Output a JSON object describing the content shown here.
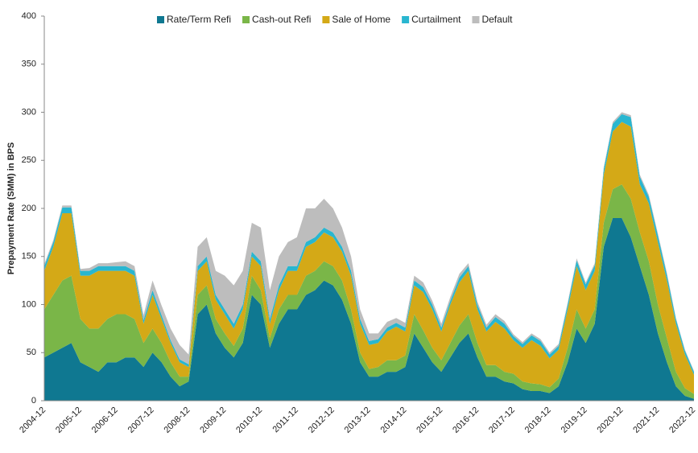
{
  "chart_data": {
    "type": "stacked_area",
    "ylabel": "Prepayment Rate (SMM) in BPS",
    "x": [
      "2004-12",
      "2005-03",
      "2005-06",
      "2005-09",
      "2005-12",
      "2006-03",
      "2006-06",
      "2006-09",
      "2006-12",
      "2007-03",
      "2007-06",
      "2007-09",
      "2007-12",
      "2008-03",
      "2008-06",
      "2008-09",
      "2008-12",
      "2009-03",
      "2009-06",
      "2009-09",
      "2009-12",
      "2010-03",
      "2010-06",
      "2010-09",
      "2010-12",
      "2011-03",
      "2011-06",
      "2011-09",
      "2011-12",
      "2012-03",
      "2012-06",
      "2012-09",
      "2012-12",
      "2013-03",
      "2013-06",
      "2013-09",
      "2013-12",
      "2014-03",
      "2014-06",
      "2014-09",
      "2014-12",
      "2015-03",
      "2015-06",
      "2015-09",
      "2015-12",
      "2016-03",
      "2016-06",
      "2016-09",
      "2016-12",
      "2017-03",
      "2017-06",
      "2017-09",
      "2017-12",
      "2018-03",
      "2018-06",
      "2018-09",
      "2018-12",
      "2019-03",
      "2019-06",
      "2019-09",
      "2019-12",
      "2020-03",
      "2020-06",
      "2020-09",
      "2020-12",
      "2021-03",
      "2021-06",
      "2021-09",
      "2021-12",
      "2022-03",
      "2022-06",
      "2022-09",
      "2022-12"
    ],
    "xtick_step": 4,
    "series": [
      {
        "name": "Rate/Term Refi",
        "color": "#0f7891",
        "values": [
          45,
          50,
          55,
          60,
          40,
          35,
          30,
          40,
          40,
          45,
          45,
          35,
          50,
          40,
          25,
          15,
          20,
          90,
          100,
          70,
          55,
          45,
          60,
          110,
          100,
          55,
          80,
          95,
          95,
          110,
          115,
          125,
          120,
          105,
          80,
          40,
          25,
          25,
          30,
          30,
          35,
          70,
          55,
          40,
          30,
          45,
          60,
          70,
          45,
          25,
          25,
          20,
          18,
          12,
          10,
          10,
          8,
          15,
          40,
          75,
          60,
          80,
          160,
          190,
          190,
          170,
          140,
          110,
          70,
          40,
          15,
          5,
          2
        ]
      },
      {
        "name": "Cash-out Refi",
        "color": "#7ab648",
        "values": [
          50,
          60,
          70,
          70,
          45,
          40,
          45,
          45,
          50,
          45,
          40,
          25,
          25,
          20,
          15,
          10,
          5,
          20,
          20,
          15,
          15,
          12,
          15,
          20,
          15,
          10,
          15,
          15,
          15,
          20,
          20,
          20,
          20,
          20,
          15,
          10,
          8,
          10,
          12,
          12,
          12,
          20,
          18,
          15,
          12,
          15,
          18,
          20,
          15,
          12,
          12,
          10,
          10,
          8,
          8,
          7,
          6,
          8,
          15,
          20,
          15,
          15,
          25,
          30,
          35,
          40,
          35,
          35,
          30,
          25,
          15,
          8,
          5
        ]
      },
      {
        "name": "Sale of Home",
        "color": "#d4a917",
        "values": [
          40,
          50,
          70,
          65,
          45,
          55,
          60,
          50,
          45,
          45,
          45,
          20,
          35,
          25,
          20,
          15,
          10,
          25,
          25,
          20,
          20,
          18,
          20,
          20,
          25,
          15,
          20,
          25,
          25,
          30,
          30,
          30,
          30,
          30,
          35,
          30,
          25,
          25,
          30,
          35,
          25,
          30,
          40,
          40,
          30,
          40,
          45,
          45,
          35,
          35,
          45,
          45,
          35,
          35,
          45,
          40,
          30,
          30,
          40,
          45,
          40,
          40,
          50,
          60,
          65,
          75,
          50,
          60,
          65,
          60,
          50,
          35,
          20
        ]
      },
      {
        "name": "Curtailment",
        "color": "#29b6d0",
        "values": [
          5,
          5,
          6,
          6,
          5,
          5,
          5,
          5,
          5,
          5,
          5,
          4,
          5,
          4,
          3,
          3,
          3,
          5,
          5,
          5,
          5,
          5,
          5,
          5,
          5,
          5,
          5,
          5,
          5,
          5,
          5,
          5,
          5,
          5,
          5,
          5,
          4,
          4,
          4,
          4,
          4,
          5,
          5,
          5,
          4,
          4,
          5,
          5,
          5,
          4,
          5,
          5,
          4,
          4,
          5,
          5,
          4,
          4,
          5,
          6,
          6,
          6,
          6,
          8,
          8,
          10,
          8,
          7,
          7,
          6,
          5,
          4,
          3
        ]
      },
      {
        "name": "Default",
        "color": "#bdbdbd",
        "values": [
          2,
          2,
          2,
          2,
          2,
          3,
          3,
          3,
          4,
          5,
          5,
          5,
          10,
          10,
          12,
          15,
          10,
          20,
          20,
          25,
          35,
          40,
          35,
          30,
          35,
          30,
          30,
          25,
          30,
          35,
          30,
          30,
          25,
          20,
          15,
          10,
          8,
          6,
          6,
          5,
          5,
          5,
          5,
          4,
          4,
          4,
          4,
          3,
          3,
          3,
          3,
          3,
          2,
          2,
          2,
          2,
          2,
          2,
          2,
          2,
          2,
          2,
          2,
          2,
          2,
          2,
          2,
          2,
          2,
          2,
          1,
          1,
          1
        ]
      }
    ],
    "ylim": [
      0,
      400
    ],
    "yticks": [
      0,
      50,
      100,
      150,
      200,
      250,
      300,
      350,
      400
    ],
    "legend": "top"
  }
}
